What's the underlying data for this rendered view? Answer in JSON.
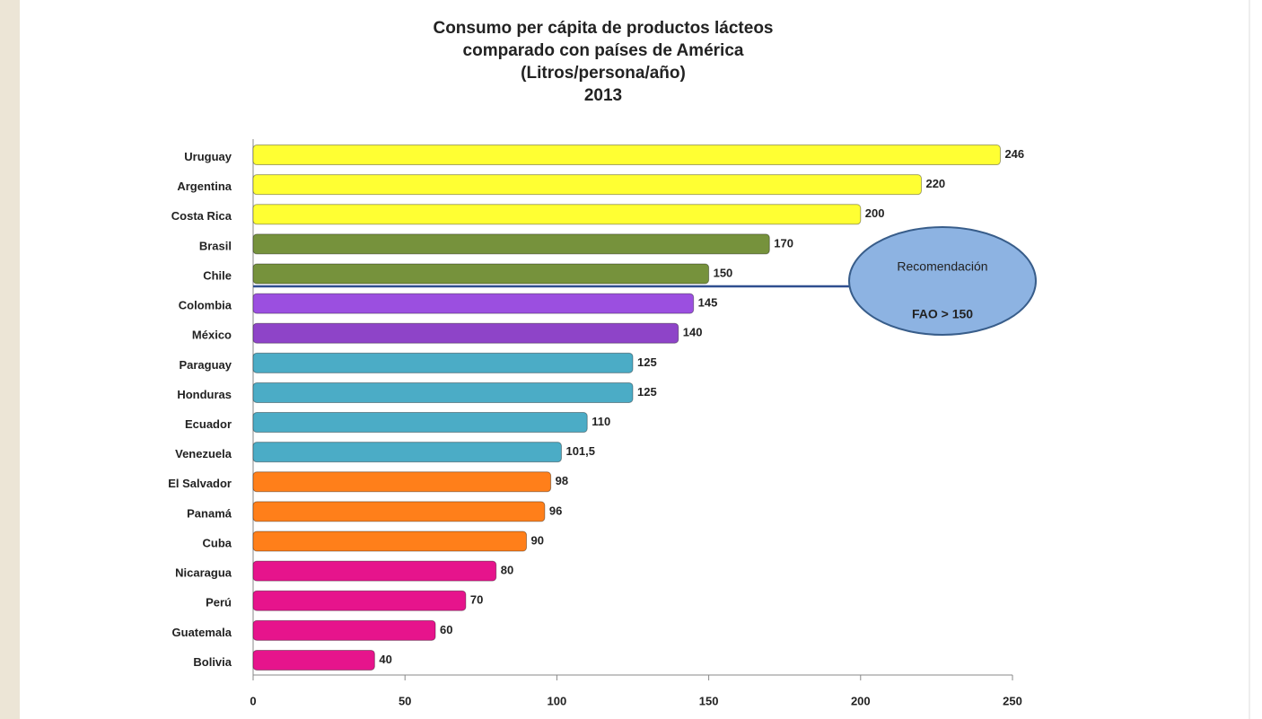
{
  "chart_data": {
    "type": "bar",
    "orientation": "horizontal",
    "title": [
      "Consumo per cápita de productos lácteos",
      "comparado con países de América",
      "(Litros/persona/año)",
      "2013"
    ],
    "categories": [
      "Uruguay",
      "Argentina",
      "Costa Rica",
      "Brasil",
      "Chile",
      "Colombia",
      "México",
      "Paraguay",
      "Honduras",
      "Ecuador",
      "Venezuela",
      "El Salvador",
      "Panamá",
      "Cuba",
      "Nicaragua",
      "Perú",
      "Guatemala",
      "Bolivia"
    ],
    "values": [
      246,
      220,
      200,
      170,
      150,
      145,
      140,
      125,
      125,
      110,
      101.5,
      98,
      96,
      90,
      80,
      70,
      60,
      40
    ],
    "value_labels": [
      "246",
      "220",
      "200",
      "170",
      "150",
      "145",
      "140",
      "125",
      "125",
      "110",
      "101,5",
      "98",
      "96",
      "90",
      "80",
      "70",
      "60",
      "40"
    ],
    "colors": [
      "#ffff33",
      "#ffff33",
      "#ffff33",
      "#76923c",
      "#76923c",
      "#9b4fe0",
      "#8e44c8",
      "#4bacc6",
      "#4bacc6",
      "#4bacc6",
      "#4bacc6",
      "#ff7f1a",
      "#ff7f1a",
      "#ff7f1a",
      "#e6148c",
      "#e6148c",
      "#e6148c",
      "#e6148c"
    ],
    "xlim": [
      0,
      250
    ],
    "xticks": [
      0,
      50,
      100,
      150,
      200,
      250
    ],
    "annotation": [
      "Recomendación",
      "FAO > 150"
    ]
  }
}
